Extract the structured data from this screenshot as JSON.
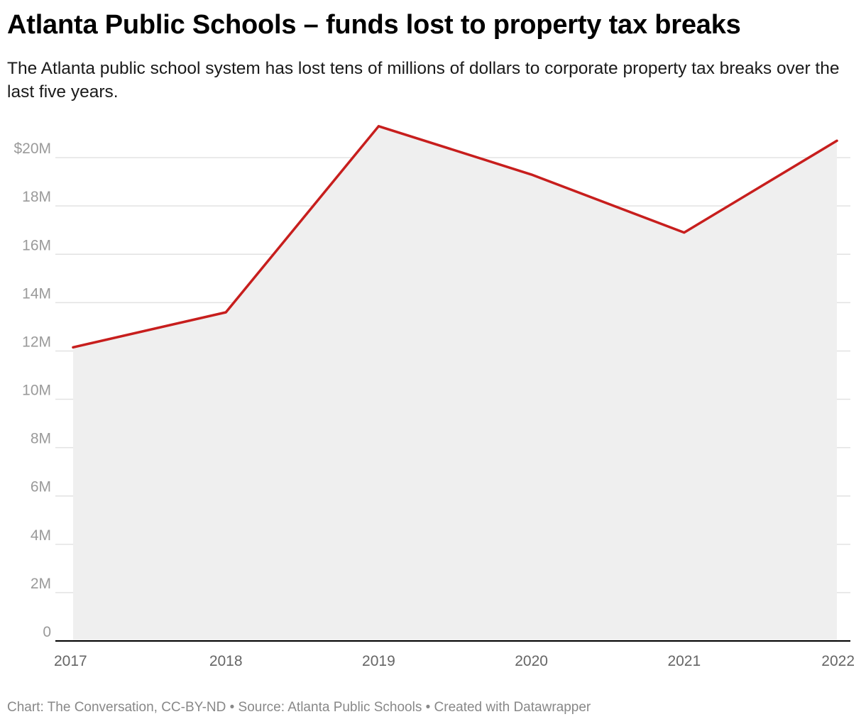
{
  "header": {
    "title": "Atlanta Public Schools – funds lost to property tax breaks",
    "subtitle": "The Atlanta public school system has lost tens of millions of dollars to corporate property tax breaks over the last five years."
  },
  "chart_data": {
    "type": "area",
    "x": [
      "2017",
      "2018",
      "2019",
      "2020",
      "2021",
      "2022"
    ],
    "series": [
      {
        "values": [
          12.15,
          13.6,
          21.3,
          19.3,
          16.9,
          20.7
        ]
      }
    ],
    "xlabel": "",
    "ylabel": "",
    "ylim": [
      0,
      22
    ],
    "yticks": [
      0,
      2,
      4,
      6,
      8,
      10,
      12,
      14,
      16,
      18,
      20
    ],
    "ytick_labels": [
      "0",
      "2M",
      "4M",
      "6M",
      "8M",
      "10M",
      "12M",
      "14M",
      "16M",
      "18M",
      "$20M"
    ],
    "grid": true,
    "colors": {
      "line": "#c71e1d",
      "area": "#efefef",
      "grid": "#e2e2e2",
      "axis": "#000000"
    }
  },
  "footer": {
    "text": "Chart: The Conversation, CC-BY-ND • Source: Atlanta Public Schools • Created with Datawrapper"
  }
}
